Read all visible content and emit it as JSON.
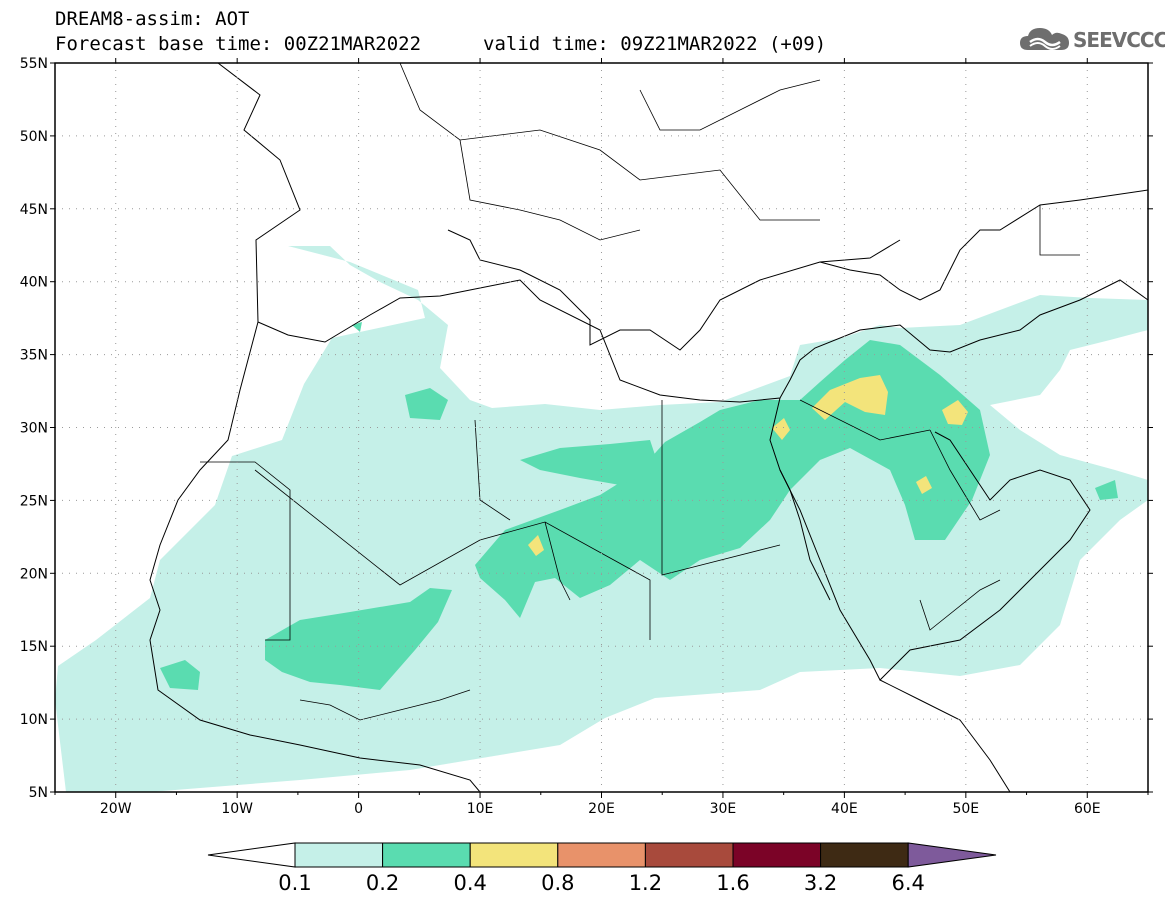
{
  "header": {
    "line1": "DREAM8-assim: AOT",
    "line2_base": "Forecast base time: 00Z21MAR2022",
    "line2_valid": "valid time: 09Z21MAR2022 (+09)"
  },
  "logo": {
    "text": "SEEVCCC",
    "icon": "cloud-icon"
  },
  "map": {
    "projection": "lat-lon",
    "lon_range": [
      -25,
      65
    ],
    "lat_range": [
      5,
      55
    ],
    "lat_labels": [
      "55N",
      "50N",
      "45N",
      "40N",
      "35N",
      "30N",
      "25N",
      "20N",
      "15N",
      "10N",
      "5N"
    ],
    "lon_labels": [
      "20W",
      "10W",
      "0",
      "10E",
      "20E",
      "30E",
      "40E",
      "50E",
      "60E"
    ],
    "grid": "dotted"
  },
  "colorbar": {
    "labels": [
      "0.1",
      "0.2",
      "0.4",
      "0.8",
      "1.2",
      "1.6",
      "3.2",
      "6.4"
    ],
    "colors": [
      "#ffffff",
      "#c5f0e8",
      "#5adcb0",
      "#f3e47b",
      "#e8926a",
      "#a84a3c",
      "#7b0327",
      "#3e2a14",
      "#7e5a9b"
    ]
  }
}
